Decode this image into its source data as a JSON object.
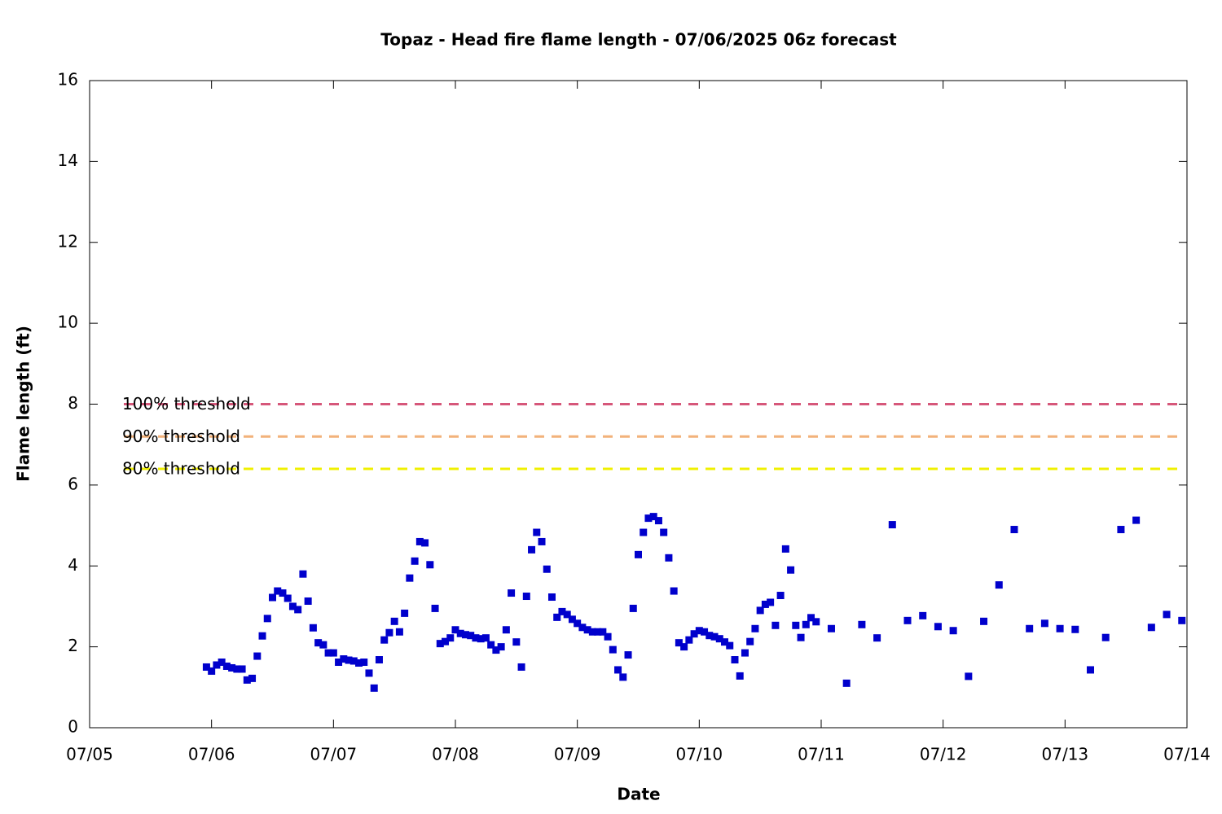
{
  "chart_data": {
    "type": "scatter",
    "title": "Topaz - Head fire flame length - 07/06/2025 06z forecast",
    "xlabel": "Date",
    "ylabel": "Flame length (ft)",
    "xlim": [
      0,
      216
    ],
    "xticks": [
      {
        "value": 0,
        "label": "07/05"
      },
      {
        "value": 24,
        "label": "07/06"
      },
      {
        "value": 48,
        "label": "07/07"
      },
      {
        "value": 72,
        "label": "07/08"
      },
      {
        "value": 96,
        "label": "07/09"
      },
      {
        "value": 120,
        "label": "07/10"
      },
      {
        "value": 144,
        "label": "07/11"
      },
      {
        "value": 168,
        "label": "07/12"
      },
      {
        "value": 192,
        "label": "07/13"
      },
      {
        "value": 216,
        "label": "07/14"
      }
    ],
    "ylim": [
      0,
      16
    ],
    "yticks": [
      0,
      2,
      4,
      6,
      8,
      10,
      12,
      14,
      16
    ],
    "thresholds": [
      {
        "name": "100% threshold",
        "value": 8,
        "color": "#d6577a"
      },
      {
        "name": "90% threshold",
        "value": 7.2,
        "color": "#f2b27a"
      },
      {
        "name": "80% threshold",
        "value": 6.4,
        "color": "#f0f000"
      }
    ],
    "series": [
      {
        "color": "#0000cc",
        "x": [
          23,
          24,
          25,
          26,
          27,
          28,
          29,
          30,
          31,
          32,
          33,
          34,
          35,
          36,
          37,
          38,
          39,
          40,
          41,
          42,
          43,
          44,
          45,
          46,
          47,
          48,
          49,
          50,
          51,
          52,
          53,
          54,
          55,
          56,
          57,
          58,
          59,
          60,
          61,
          62,
          63,
          64,
          65,
          66,
          67,
          68,
          69,
          70,
          71,
          72,
          73,
          74,
          75,
          76,
          77,
          78,
          79,
          80,
          81,
          82,
          83,
          84,
          85,
          86,
          87,
          88,
          89,
          90,
          91,
          92,
          93,
          94,
          95,
          96,
          97,
          98,
          99,
          100,
          101,
          102,
          103,
          104,
          105,
          106,
          107,
          108,
          109,
          110,
          111,
          112,
          113,
          114,
          115,
          116,
          117,
          118,
          119,
          120,
          121,
          122,
          123,
          124,
          125,
          126,
          127,
          128,
          129,
          130,
          131,
          132,
          133,
          134,
          135,
          136,
          137,
          138,
          139,
          140,
          141,
          142,
          143,
          146,
          149,
          152,
          155,
          158,
          161,
          164,
          167,
          170,
          173,
          176,
          179,
          182,
          185,
          188,
          191,
          194,
          197,
          200,
          203,
          206,
          209,
          212,
          215
        ],
        "values": [
          1.5,
          1.4,
          1.55,
          1.62,
          1.52,
          1.48,
          1.45,
          1.45,
          1.18,
          1.22,
          1.77,
          2.27,
          2.7,
          3.22,
          3.38,
          3.33,
          3.2,
          3.0,
          2.92,
          3.8,
          3.13,
          2.47,
          2.1,
          2.05,
          1.85,
          1.85,
          1.62,
          1.7,
          1.67,
          1.65,
          1.6,
          1.62,
          1.35,
          0.98,
          1.68,
          2.17,
          2.35,
          2.63,
          2.37,
          2.83,
          3.7,
          4.12,
          4.6,
          4.57,
          4.03,
          2.95,
          2.08,
          2.13,
          2.22,
          2.42,
          2.33,
          2.3,
          2.28,
          2.22,
          2.2,
          2.22,
          2.05,
          1.92,
          2.0,
          2.42,
          3.33,
          2.12,
          1.5,
          3.25,
          4.4,
          4.83,
          4.6,
          3.92,
          3.23,
          2.73,
          2.87,
          2.8,
          2.68,
          2.58,
          2.48,
          2.42,
          2.37,
          2.37,
          2.37,
          2.25,
          1.93,
          1.43,
          1.25,
          1.8,
          2.95,
          4.28,
          4.83,
          5.18,
          5.22,
          5.12,
          4.83,
          4.2,
          3.38,
          2.1,
          2.0,
          2.17,
          2.32,
          2.4,
          2.37,
          2.28,
          2.25,
          2.2,
          2.12,
          2.03,
          1.68,
          1.28,
          1.85,
          2.13,
          2.45,
          2.9,
          3.05,
          3.1,
          2.53,
          3.27,
          4.42,
          3.9,
          2.53,
          2.23,
          2.55,
          2.72,
          2.62,
          2.45,
          1.1,
          2.55,
          2.22,
          5.02,
          2.65,
          2.77,
          2.5,
          2.4,
          1.27,
          2.63,
          3.53,
          4.9,
          2.45,
          2.58,
          2.45,
          2.43,
          1.43,
          2.23,
          4.9,
          5.13,
          2.48,
          2.8,
          2.65
        ]
      }
    ]
  }
}
